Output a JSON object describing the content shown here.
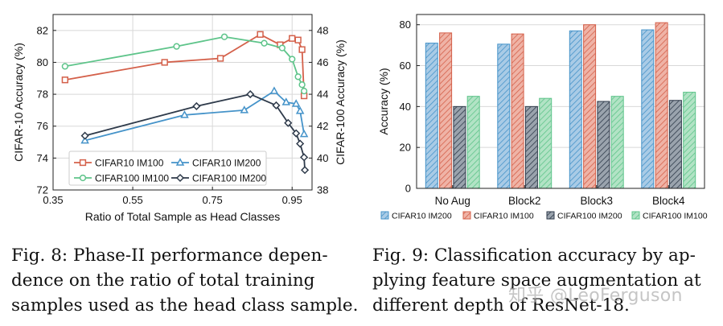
{
  "colors": {
    "red": "#d4604a",
    "blue": "#4593c9",
    "green": "#5ec48a",
    "dark": "#2e3a4a",
    "grid": "#d8d8d8"
  },
  "chart_data": [
    {
      "type": "line",
      "xlabel": "Ratio of Total Sample as Head Classes",
      "ylabel_left": "CIFAR-10 Accuracy (%)",
      "ylabel_right": "CIFAR-100 Accuracy (%)",
      "xlim": [
        0.35,
        1.0
      ],
      "ylim_left": [
        72,
        83
      ],
      "ylim_right": [
        38,
        49
      ],
      "xticks": [
        "0.35",
        "0.55",
        "0.75",
        "0.95"
      ],
      "yticks_left": [
        "72",
        "74",
        "76",
        "78",
        "80",
        "82"
      ],
      "yticks_right": [
        "38",
        "40",
        "42",
        "44",
        "46",
        "48"
      ],
      "legend": "lower-left",
      "series": [
        {
          "name": "CIFAR10 IM100",
          "axis": "left",
          "color": "red",
          "marker": "square",
          "x": [
            0.38,
            0.63,
            0.77,
            0.87,
            0.92,
            0.95,
            0.965,
            0.975,
            0.98
          ],
          "y": [
            78.9,
            80.0,
            80.25,
            81.75,
            81.1,
            81.5,
            81.4,
            80.8,
            77.9
          ]
        },
        {
          "name": "CIFAR10 IM200",
          "axis": "left",
          "color": "blue",
          "marker": "triangle",
          "x": [
            0.43,
            0.68,
            0.83,
            0.905,
            0.935,
            0.96,
            0.97,
            0.98
          ],
          "y": [
            75.1,
            76.7,
            77.0,
            78.2,
            77.5,
            77.4,
            76.95,
            75.5
          ]
        },
        {
          "name": "CIFAR100 IM100",
          "axis": "right",
          "color": "green",
          "marker": "circle",
          "x": [
            0.38,
            0.66,
            0.78,
            0.88,
            0.925,
            0.95,
            0.965,
            0.975,
            0.98
          ],
          "y": [
            45.75,
            47.0,
            47.6,
            47.2,
            46.9,
            46.2,
            45.1,
            44.6,
            44.2
          ]
        },
        {
          "name": "CIFAR100 IM200",
          "axis": "right",
          "color": "dark",
          "marker": "diamond",
          "x": [
            0.43,
            0.71,
            0.845,
            0.91,
            0.94,
            0.96,
            0.97,
            0.98,
            0.982
          ],
          "y": [
            41.4,
            43.25,
            44.0,
            43.3,
            42.2,
            41.55,
            40.9,
            40.05,
            39.25
          ]
        }
      ]
    },
    {
      "type": "bar",
      "ylabel": "Accuracy (%)",
      "ylim": [
        0,
        85
      ],
      "yticks": [
        "0",
        "20",
        "40",
        "60",
        "80"
      ],
      "categories": [
        "No Aug",
        "Block2",
        "Block3",
        "Block4"
      ],
      "legend": "bottom",
      "series": [
        {
          "name": "CIFAR10 IM200",
          "color": "blue",
          "values": [
            71,
            70.5,
            77,
            77.5
          ]
        },
        {
          "name": "CIFAR10 IM100",
          "color": "red",
          "values": [
            76,
            75.5,
            80,
            81
          ]
        },
        {
          "name": "CIFAR100 IM200",
          "color": "dark",
          "values": [
            40,
            40,
            42.5,
            43
          ]
        },
        {
          "name": "CIFAR100 IM100",
          "color": "green",
          "values": [
            45,
            44,
            45,
            47
          ]
        }
      ]
    }
  ],
  "captions": {
    "fig8": {
      "lines": [
        "Fig. 8: Phase-II performance depen-",
        "dence on the ratio of total training",
        "samples used as the head class sample."
      ]
    },
    "fig9": {
      "lines": [
        "Fig. 9: Classification accuracy by ap-",
        "plying feature space augmentation at",
        "different depth of ResNet-18."
      ]
    }
  },
  "watermark": "知乎 @LeoFerguson"
}
